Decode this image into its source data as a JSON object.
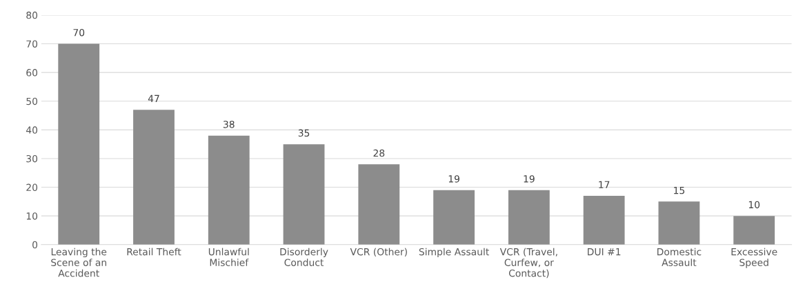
{
  "chart_data": {
    "type": "bar",
    "categories": [
      "Leaving the Scene of an Accident",
      "Retail Theft",
      "Unlawful Mischief",
      "Disorderly Conduct",
      "VCR (Other)",
      "Simple Assault",
      "VCR (Travel, Curfew, or Contact)",
      "DUI #1",
      "Domestic Assault",
      "Excessive Speed"
    ],
    "values": [
      70,
      47,
      38,
      35,
      28,
      19,
      19,
      17,
      15,
      10
    ],
    "color": "#8c8c8c",
    "ylim": [
      0,
      80
    ],
    "yticks": [
      0,
      10,
      20,
      30,
      40,
      50,
      60,
      70,
      80
    ],
    "grid": "y",
    "data_labels": true
  }
}
